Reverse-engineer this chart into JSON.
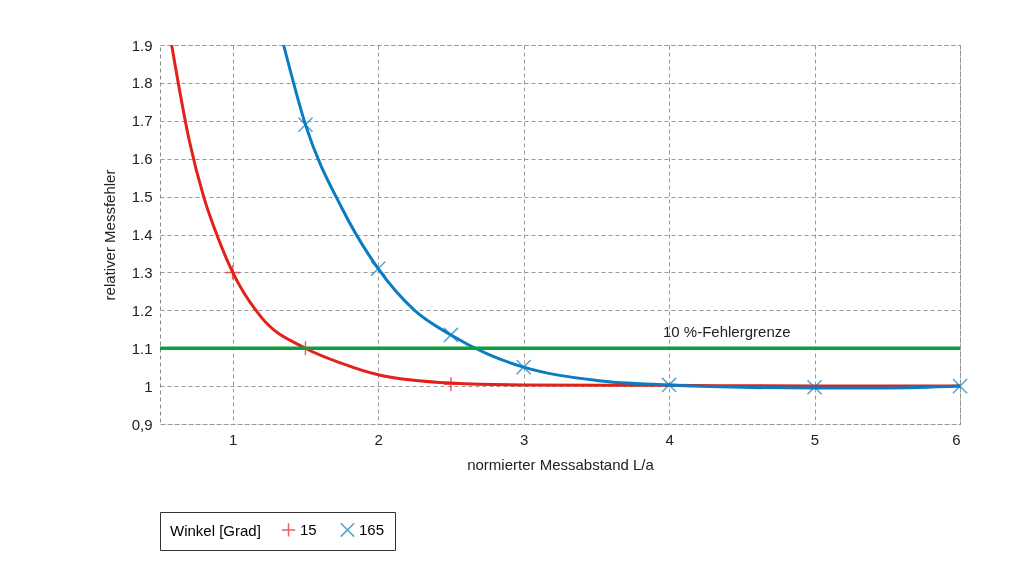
{
  "chart_data": {
    "type": "line",
    "xlabel": "normierter Messabstand L/a",
    "ylabel": "relativer Messfehler",
    "legend_title": "Winkel [Grad]",
    "xlim": [
      0.5,
      6
    ],
    "xticks": [
      1,
      2,
      3,
      4,
      5,
      6
    ],
    "ylim": [
      0.9,
      1.9
    ],
    "yticks": [
      {
        "value": 0.9,
        "label": "0,9"
      },
      1,
      1.1,
      1.2,
      1.3,
      1.4,
      1.5,
      1.6,
      1.7,
      1.8,
      1.9
    ],
    "grid": true,
    "legend": "bottom",
    "line_style": "solid",
    "series": [
      {
        "type": "line",
        "color": "#e32119",
        "marker": "none",
        "x": [
          0.58,
          0.7,
          0.8,
          0.9,
          1,
          1.2,
          1.5,
          1.75,
          2,
          2.5,
          3,
          4,
          5,
          6
        ],
        "values": [
          1.9,
          1.65,
          1.5,
          1.39,
          1.3,
          1.18,
          1.1,
          1.06,
          1.03,
          1.008,
          1.003,
          1.002,
          1.0,
          1.0
        ]
      },
      {
        "type": "line",
        "color": "#0a7cc1",
        "marker": "none",
        "x": [
          1.35,
          1.5,
          1.75,
          2,
          2.25,
          2.5,
          2.75,
          3,
          3.5,
          4,
          4.5,
          5,
          5.5,
          6
        ],
        "values": [
          1.9,
          1.69,
          1.47,
          1.31,
          1.2,
          1.135,
          1.085,
          1.05,
          1.015,
          1.003,
          0.997,
          0.995,
          0.995,
          1.0
        ]
      },
      {
        "type": "scatter",
        "name": "15",
        "color": "#e32119",
        "marker": "cross",
        "x": [
          1,
          1.5,
          2.5
        ],
        "values": [
          1.3,
          1.1,
          1.005
        ]
      },
      {
        "type": "scatter",
        "name": "165",
        "color": "#0a7cc1",
        "marker": "x",
        "x": [
          1.5,
          2,
          2.5,
          3,
          4,
          5,
          6
        ],
        "values": [
          1.69,
          1.31,
          1.135,
          1.05,
          1.003,
          0.997,
          1.0
        ]
      }
    ],
    "ref_lines": [
      {
        "axis": "y",
        "value": 1.1,
        "label": "10 %-Fehlergrenze",
        "color": "#0aa03c",
        "line_style": "solid"
      }
    ]
  }
}
